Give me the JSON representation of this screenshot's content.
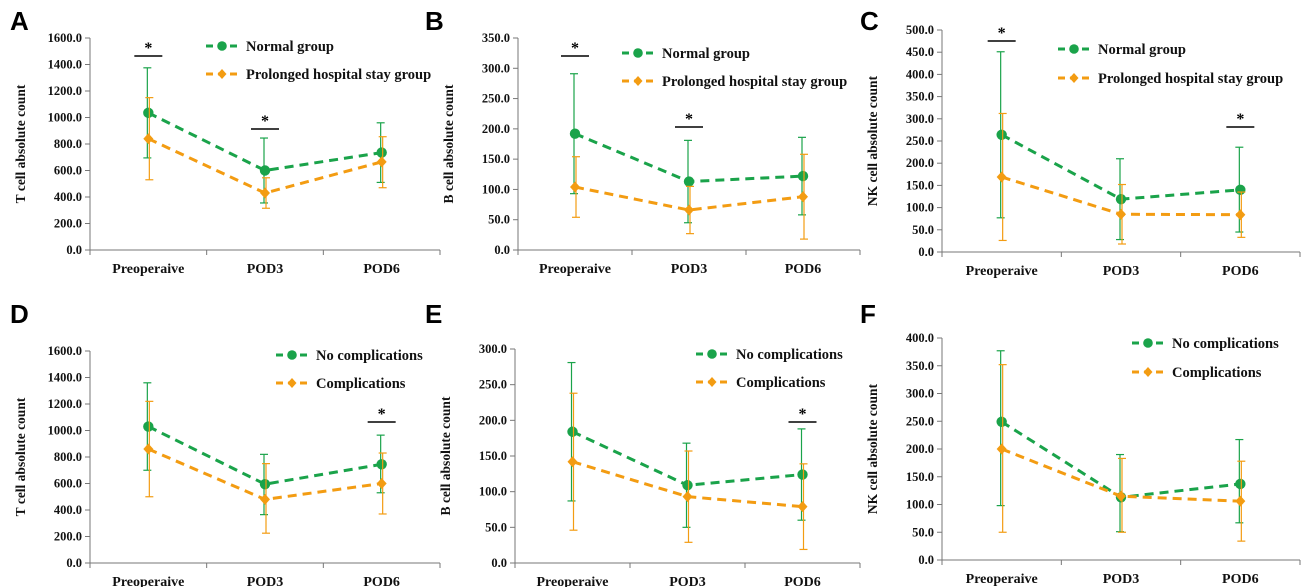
{
  "colors": {
    "series_1": "#1aa34a",
    "series_2": "#f39c12"
  },
  "chart_data": [
    {
      "panel": "A",
      "type": "line",
      "ylabel": "T cell absolute count",
      "categories": [
        "Preoperaive",
        "POD3",
        "POD6"
      ],
      "ylim": [
        0,
        1600
      ],
      "ytick_step": 200,
      "tick_decimals": 1,
      "series": [
        {
          "name": "Normal group",
          "values": [
            1035,
            600,
            735
          ],
          "err_low": [
            695,
            355,
            510
          ],
          "err_high": [
            1375,
            845,
            960
          ]
        },
        {
          "name": "Prolonged hospital stay group",
          "values": [
            840,
            430,
            665
          ],
          "err_low": [
            530,
            315,
            470
          ],
          "err_high": [
            1150,
            545,
            855
          ]
        }
      ],
      "significance": [
        {
          "category": "Preoperaive",
          "label": "*"
        },
        {
          "category": "POD3",
          "label": "*"
        }
      ]
    },
    {
      "panel": "B",
      "type": "line",
      "ylabel": "B cell absolute count",
      "categories": [
        "Preoperaive",
        "POD3",
        "POD6"
      ],
      "ylim": [
        0,
        350
      ],
      "ytick_step": 50,
      "tick_decimals": 1,
      "series": [
        {
          "name": "Normal group",
          "values": [
            192,
            113,
            122
          ],
          "err_low": [
            93,
            45,
            58
          ],
          "err_high": [
            291,
            181,
            186
          ]
        },
        {
          "name": "Prolonged hospital stay group",
          "values": [
            104,
            66,
            88
          ],
          "err_low": [
            54,
            27,
            18
          ],
          "err_high": [
            154,
            105,
            158
          ]
        }
      ],
      "significance": [
        {
          "category": "Preoperaive",
          "label": "*"
        },
        {
          "category": "POD3",
          "label": "*"
        }
      ]
    },
    {
      "panel": "C",
      "type": "line",
      "ylabel": "NK cell absolute count",
      "categories": [
        "Preoperaive",
        "POD3",
        "POD6"
      ],
      "ylim": [
        0,
        500
      ],
      "ytick_step": 50,
      "tick_decimals": 1,
      "series": [
        {
          "name": "Normal group",
          "values": [
            264,
            119,
            140
          ],
          "err_low": [
            77,
            28,
            45
          ],
          "err_high": [
            451,
            210,
            236
          ]
        },
        {
          "name": "Prolonged hospital stay group",
          "values": [
            169,
            85,
            84
          ],
          "err_low": [
            26,
            18,
            33
          ],
          "err_high": [
            312,
            152,
            135
          ]
        }
      ],
      "significance": [
        {
          "category": "Preoperaive",
          "label": "*"
        },
        {
          "category": "POD6",
          "label": "*"
        }
      ]
    },
    {
      "panel": "D",
      "type": "line",
      "ylabel": "T cell absolute count",
      "categories": [
        "Preoperaive",
        "POD3",
        "POD6"
      ],
      "ylim": [
        0,
        1600
      ],
      "ytick_step": 200,
      "tick_decimals": 1,
      "series": [
        {
          "name": "No complications",
          "values": [
            1030,
            595,
            745
          ],
          "err_low": [
            700,
            365,
            530
          ],
          "err_high": [
            1360,
            820,
            965
          ]
        },
        {
          "name": "Complications",
          "values": [
            860,
            480,
            600
          ],
          "err_low": [
            500,
            225,
            370
          ],
          "err_high": [
            1220,
            750,
            830
          ]
        }
      ],
      "significance": [
        {
          "category": "POD6",
          "label": "*"
        }
      ]
    },
    {
      "panel": "E",
      "type": "line",
      "ylabel": "B cell absolute count",
      "categories": [
        "Preoperaive",
        "POD3",
        "POD6"
      ],
      "ylim": [
        0,
        300
      ],
      "ytick_step": 50,
      "tick_decimals": 1,
      "series": [
        {
          "name": "No complications",
          "values": [
            184,
            109,
            124
          ],
          "err_low": [
            87,
            50,
            60
          ],
          "err_high": [
            281,
            168,
            188
          ]
        },
        {
          "name": "Complications",
          "values": [
            142,
            93,
            79
          ],
          "err_low": [
            46,
            29,
            19
          ],
          "err_high": [
            238,
            157,
            139
          ]
        }
      ],
      "significance": [
        {
          "category": "POD6",
          "label": "*"
        }
      ]
    },
    {
      "panel": "F",
      "type": "line",
      "ylabel": "NK cell absolute count",
      "categories": [
        "Preoperaive",
        "POD3",
        "POD6"
      ],
      "ylim": [
        0,
        400
      ],
      "ytick_step": 50,
      "tick_decimals": 1,
      "series": [
        {
          "name": "No complications",
          "values": [
            249,
            113,
            137
          ],
          "err_low": [
            98,
            51,
            67
          ],
          "err_high": [
            377,
            190,
            217
          ]
        },
        {
          "name": "Complications",
          "values": [
            200,
            115,
            106
          ],
          "err_low": [
            50,
            50,
            34
          ],
          "err_high": [
            352,
            183,
            178
          ]
        }
      ],
      "significance": []
    }
  ]
}
